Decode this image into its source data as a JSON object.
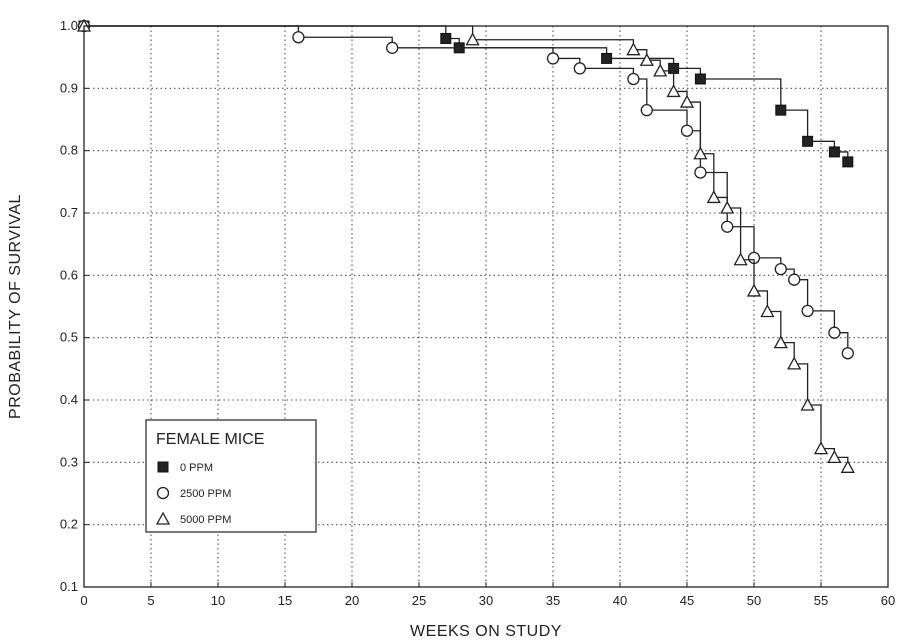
{
  "chart_data": {
    "type": "line",
    "step": true,
    "xlabel": "WEEKS ON STUDY",
    "ylabel": "PROBABILITY OF SURVIVAL",
    "xlim": [
      0,
      60
    ],
    "ylim": [
      0.1,
      1.0
    ],
    "x_ticks": [
      "0",
      "5",
      "10",
      "15",
      "20",
      "25",
      "30",
      "35",
      "40",
      "45",
      "50",
      "55",
      "60"
    ],
    "y_ticks": [
      "0.1",
      "0.2",
      "0.3",
      "0.4",
      "0.5",
      "0.6",
      "0.7",
      "0.8",
      "0.9",
      "1.0"
    ],
    "grid": true,
    "legend": {
      "position": "bottom-left",
      "title": "FEMALE MICE",
      "entries": [
        "0 PPM",
        "2500 PPM",
        "5000 PPM"
      ]
    },
    "series": [
      {
        "name": "0 PPM",
        "marker": "square",
        "x": [
          0,
          27,
          28,
          39,
          44,
          46,
          52,
          54,
          56,
          57
        ],
        "y": [
          1.0,
          0.98,
          0.965,
          0.948,
          0.932,
          0.915,
          0.865,
          0.815,
          0.798,
          0.782
        ]
      },
      {
        "name": "2500 PPM",
        "marker": "circle",
        "x": [
          0,
          16,
          23,
          35,
          37,
          41,
          42,
          45,
          46,
          48,
          50,
          52,
          53,
          54,
          56,
          57
        ],
        "y": [
          1.0,
          0.982,
          0.965,
          0.948,
          0.932,
          0.915,
          0.865,
          0.832,
          0.765,
          0.678,
          0.628,
          0.61,
          0.593,
          0.543,
          0.508,
          0.475
        ]
      },
      {
        "name": "5000 PPM",
        "marker": "triangle",
        "x": [
          0,
          29,
          41,
          42,
          43,
          44,
          45,
          46,
          47,
          48,
          49,
          50,
          51,
          52,
          53,
          54,
          55,
          56,
          57
        ],
        "y": [
          1.0,
          0.978,
          0.962,
          0.945,
          0.928,
          0.895,
          0.878,
          0.795,
          0.725,
          0.708,
          0.625,
          0.575,
          0.542,
          0.492,
          0.458,
          0.392,
          0.322,
          0.308,
          0.292
        ]
      }
    ]
  }
}
